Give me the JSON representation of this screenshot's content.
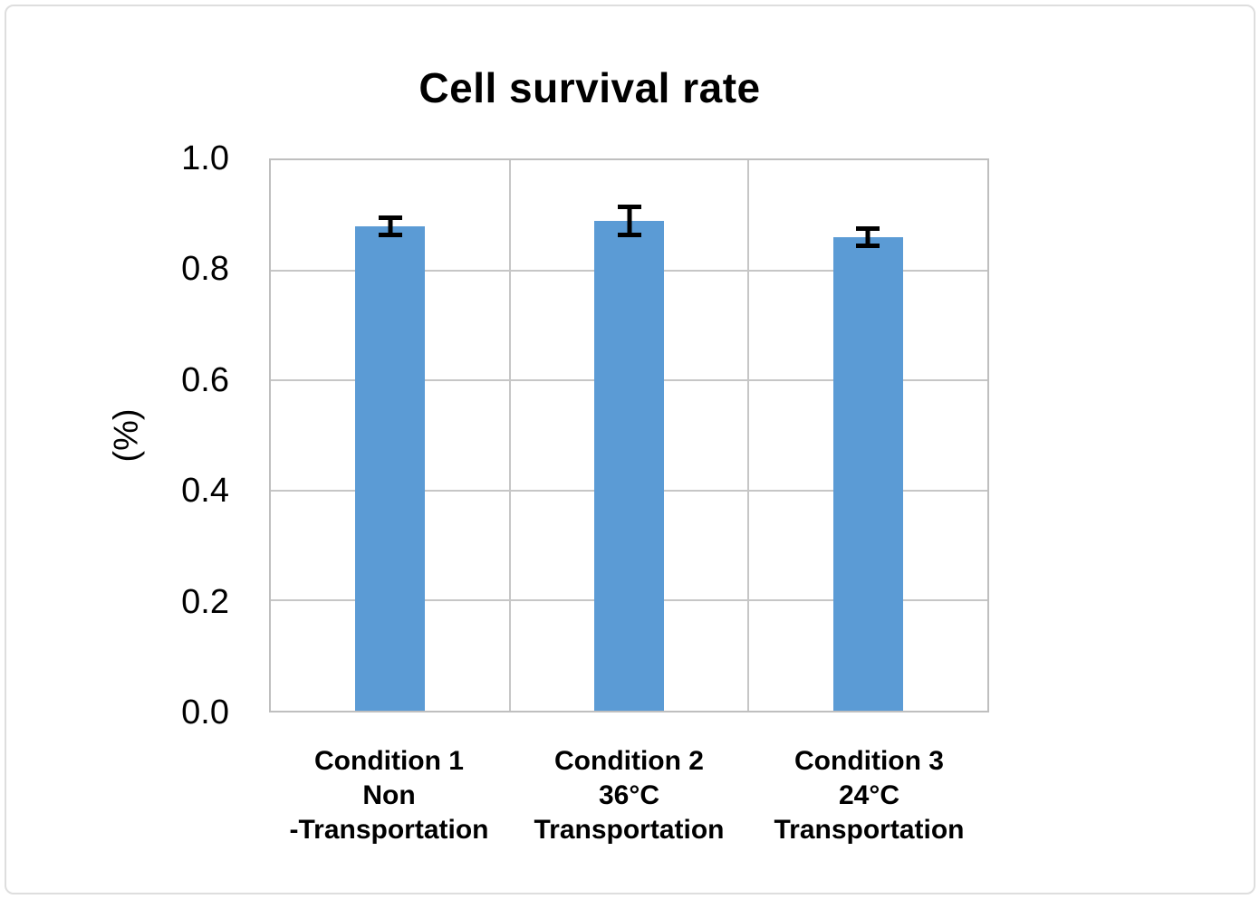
{
  "figure": {
    "title": "Cell survival rate"
  },
  "colors": {
    "bar_fill": "#5B9BD5",
    "grid_line": "#C6C6C6",
    "plot_border": "#BFBFBF",
    "error_bar": "#000000",
    "text": "#000000",
    "outer_border": "#DEDEDE",
    "background": "#FFFFFF"
  },
  "chart_data": {
    "type": "bar",
    "title": "Cell survival rate",
    "xlabel": "",
    "ylabel": "(%)",
    "ylim": [
      0.0,
      1.0
    ],
    "ytick_step": 0.2,
    "grid": "horizontal gridlines every 0.2; vertical gridlines between categories; light gray",
    "legend_position": "none",
    "yticks": [
      {
        "value": 1.0,
        "label": "1.0"
      },
      {
        "value": 0.8,
        "label": "0.8"
      },
      {
        "value": 0.6,
        "label": "0.6"
      },
      {
        "value": 0.4,
        "label": "0.4"
      },
      {
        "value": 0.2,
        "label": "0.2"
      },
      {
        "value": 0.0,
        "label": "0.0"
      }
    ],
    "categories": [
      {
        "id": "condition-1",
        "lines": [
          "Condition 1",
          "Non",
          "-Transportation"
        ]
      },
      {
        "id": "condition-2",
        "lines": [
          "Condition 2",
          "36°C",
          "Transportation"
        ]
      },
      {
        "id": "condition-3",
        "lines": [
          "Condition 3",
          "24°C",
          "Transportation"
        ]
      }
    ],
    "series": [
      {
        "name": "Cell survival rate",
        "values": [
          0.88,
          0.89,
          0.86
        ],
        "errors": [
          0.02,
          0.03,
          0.02
        ]
      }
    ]
  }
}
